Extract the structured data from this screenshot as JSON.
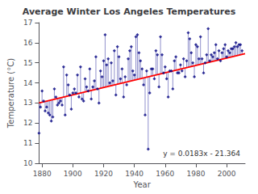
{
  "chart_data": {
    "type": "scatter",
    "title": "Average Winter Los Angeles Temperatures",
    "xlabel": "Year",
    "ylabel": "Temperature (°C)",
    "xlim": [
      1878,
      2012
    ],
    "ylim": [
      10,
      17
    ],
    "xticks": [
      1880,
      1900,
      1920,
      1940,
      1960,
      1980,
      2000
    ],
    "yticks": [
      10,
      11,
      12,
      13,
      14,
      15,
      16,
      17
    ],
    "grid": false,
    "marker": "diamond",
    "color": "#000080",
    "x": [
      1878,
      1879,
      1880,
      1881,
      1882,
      1883,
      1884,
      1885,
      1886,
      1887,
      1888,
      1889,
      1890,
      1891,
      1892,
      1893,
      1894,
      1895,
      1896,
      1897,
      1898,
      1899,
      1900,
      1901,
      1902,
      1903,
      1904,
      1905,
      1906,
      1907,
      1908,
      1909,
      1910,
      1911,
      1912,
      1913,
      1914,
      1915,
      1916,
      1917,
      1918,
      1919,
      1920,
      1921,
      1922,
      1923,
      1924,
      1925,
      1926,
      1927,
      1928,
      1929,
      1930,
      1931,
      1932,
      1933,
      1934,
      1935,
      1936,
      1937,
      1938,
      1939,
      1940,
      1941,
      1942,
      1943,
      1944,
      1945,
      1946,
      1947,
      1948,
      1949,
      1950,
      1951,
      1952,
      1953,
      1954,
      1955,
      1956,
      1957,
      1958,
      1959,
      1960,
      1961,
      1962,
      1963,
      1964,
      1965,
      1966,
      1967,
      1968,
      1969,
      1970,
      1971,
      1972,
      1973,
      1974,
      1975,
      1976,
      1977,
      1978,
      1979,
      1980,
      1981,
      1982,
      1983,
      1984,
      1985,
      1986,
      1987,
      1988,
      1989,
      1990,
      1991,
      1992,
      1993,
      1994,
      1995,
      1996,
      1997,
      1998,
      1999,
      2000,
      2001,
      2002,
      2003,
      2004,
      2005,
      2006,
      2007,
      2008,
      2009,
      2010
    ],
    "values": [
      11.5,
      12.8,
      13.6,
      13.1,
      12.6,
      12.8,
      12.5,
      12.4,
      12.1,
      12.3,
      13.7,
      13.3,
      12.9,
      13.0,
      13.1,
      12.9,
      14.8,
      12.4,
      14.4,
      13.9,
      13.4,
      12.7,
      13.5,
      13.7,
      13.5,
      14.4,
      13.3,
      14.8,
      13.2,
      13.1,
      14.2,
      13.8,
      13.6,
      14.7,
      13.2,
      13.8,
      14.1,
      15.3,
      13.7,
      13.0,
      14.6,
      14.3,
      15.1,
      16.4,
      14.9,
      15.2,
      14.0,
      15.0,
      14.1,
      15.6,
      13.4,
      15.8,
      15.3,
      14.2,
      14.7,
      13.3,
      14.3,
      13.9,
      15.2,
      15.6,
      15.8,
      14.6,
      14.4,
      16.3,
      16.4,
      15.5,
      15.1,
      14.7,
      13.9,
      12.4,
      14.6,
      10.7,
      13.5,
      14.7,
      14.7,
      14.2,
      15.6,
      15.4,
      13.8,
      16.3,
      15.4,
      14.5,
      14.8,
      14.2,
      13.3,
      14.6,
      14.6,
      13.7,
      15.1,
      15.3,
      14.5,
      14.5,
      14.9,
      14.6,
      15.2,
      14.3,
      15.1,
      16.5,
      16.2,
      15.5,
      15.0,
      14.3,
      15.9,
      15.8,
      15.2,
      16.3,
      15.2,
      14.5,
      15.0,
      15.4,
      16.7,
      15.1,
      15.4,
      15.3,
      15.5,
      15.9,
      15.2,
      15.6,
      15.1,
      15.5,
      15.7,
      15.9,
      15.3,
      15.6,
      15.5,
      15.7,
      15.7,
      15.8,
      16.0,
      15.8,
      15.9,
      15.9,
      15.6
    ],
    "stem_base": [
      13.0034,
      13.0217,
      13.04,
      13.0583,
      13.0766,
      13.0949,
      13.1132,
      13.1315,
      13.1498,
      13.1681,
      13.1864,
      13.2047,
      13.223,
      13.2413,
      13.2596,
      13.2779,
      13.2962,
      13.3145,
      13.3328,
      13.3511,
      13.3694,
      13.3877,
      13.406,
      13.4243,
      13.4426,
      13.4609,
      13.4792,
      13.4975,
      13.5158,
      13.5341,
      13.5524,
      13.5707,
      13.589,
      13.6073,
      13.6256,
      13.6439,
      13.6622,
      13.6805,
      13.6988,
      13.7171,
      13.7354,
      13.7537,
      13.772,
      13.7903,
      13.8086,
      13.8269,
      13.8452,
      13.8635,
      13.8818,
      13.9001,
      13.9184,
      13.9367,
      13.955,
      13.9733,
      13.9916,
      14.0099,
      14.0282,
      14.0465,
      14.0648,
      14.0831,
      14.1014,
      14.1197,
      14.138,
      14.1563,
      14.1746,
      14.1929,
      14.2112,
      14.2295,
      14.2478,
      14.2661,
      14.2844,
      14.3027,
      14.321,
      14.3393,
      14.3576,
      14.3759,
      14.3942,
      14.4125,
      14.4308,
      14.4491,
      14.4674,
      14.4857,
      14.504,
      14.5223,
      14.5406,
      14.5589,
      14.5772,
      14.5955,
      14.6138,
      14.6321,
      14.6504,
      14.6687,
      14.687,
      14.7053,
      14.7236,
      14.7419,
      14.7602,
      14.7785,
      14.7968,
      14.8151,
      14.8334,
      14.8517,
      14.87,
      14.8883,
      14.9066,
      14.9249,
      14.9432,
      14.9615,
      14.9798,
      14.9981,
      15.0164,
      15.0347,
      15.053,
      15.0713,
      15.0896,
      15.1079,
      15.1262,
      15.1445,
      15.1628,
      15.1811,
      15.1994,
      15.2177,
      15.236,
      15.2543,
      15.2726,
      15.2909,
      15.3092,
      15.3275,
      15.3458,
      15.3641,
      15.3824,
      15.4007,
      15.419
    ],
    "stem_color": "#4444aa",
    "trend": {
      "x": [
        1878,
        2012
      ],
      "values": [
        13.0034,
        15.4556
      ],
      "color": "red"
    },
    "annotations": [
      {
        "text": "y = 0.0183x - 21.364"
      }
    ]
  }
}
